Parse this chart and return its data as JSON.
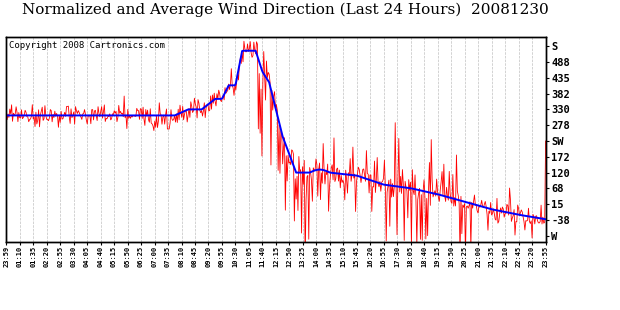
{
  "title": "Normalized and Average Wind Direction (Last 24 Hours)  20081230",
  "copyright": "Copyright 2008 Cartronics.com",
  "ytick_labels": [
    "S",
    "488",
    "435",
    "382",
    "330",
    "278",
    "SW",
    "172",
    "120",
    "68",
    "15",
    "-38",
    "W"
  ],
  "ytick_values": [
    541,
    488,
    435,
    382,
    330,
    278,
    225,
    172,
    120,
    68,
    15,
    -38,
    -90
  ],
  "ylim": [
    -110,
    570
  ],
  "xtick_labels": [
    "23:59",
    "01:10",
    "01:35",
    "02:20",
    "02:55",
    "03:30",
    "04:05",
    "04:40",
    "05:15",
    "05:50",
    "06:25",
    "07:00",
    "07:35",
    "08:10",
    "08:45",
    "09:20",
    "09:55",
    "10:30",
    "11:05",
    "11:40",
    "12:15",
    "12:50",
    "13:25",
    "14:00",
    "14:35",
    "15:10",
    "15:45",
    "16:20",
    "16:55",
    "17:30",
    "18:05",
    "18:40",
    "19:15",
    "19:50",
    "20:25",
    "21:00",
    "21:35",
    "22:10",
    "22:45",
    "23:20",
    "23:55"
  ],
  "background_color": "#ffffff",
  "plot_bg_color": "#ffffff",
  "grid_color": "#c0c0c0",
  "red_color": "#ff0000",
  "blue_color": "#0000ff",
  "title_fontsize": 11,
  "copyright_fontsize": 6.5
}
